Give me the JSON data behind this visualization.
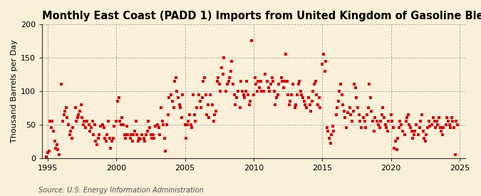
{
  "title": "Monthly East Coast (PADD 1) Imports from United Kingdom of Gasoline Blending Components",
  "ylabel": "Thousand Barrels per Day",
  "source_text": "Source: U.S. Energy Information Administration",
  "background_color": "#faefd8",
  "plot_bg_color": "#faefd8",
  "marker_color": "#cc0000",
  "marker": "s",
  "marker_size": 3.5,
  "xlim": [
    1994.6,
    2025.4
  ],
  "ylim": [
    0,
    200
  ],
  "yticks": [
    0,
    50,
    100,
    150,
    200
  ],
  "xticks": [
    1995,
    2000,
    2005,
    2010,
    2015,
    2020,
    2025
  ],
  "grid_color": "#aaaaaa",
  "grid_style": "--",
  "title_fontsize": 10.5,
  "label_fontsize": 8,
  "tick_fontsize": 8,
  "source_fontsize": 7,
  "data_x": [
    1994.917,
    1995.0,
    1995.083,
    1995.167,
    1995.25,
    1995.333,
    1995.417,
    1995.5,
    1995.583,
    1995.667,
    1995.75,
    1995.833,
    1996.0,
    1996.083,
    1996.167,
    1996.25,
    1996.333,
    1996.417,
    1996.5,
    1996.583,
    1996.667,
    1996.75,
    1996.833,
    1997.0,
    1997.083,
    1997.167,
    1997.25,
    1997.333,
    1997.417,
    1997.5,
    1997.583,
    1997.667,
    1997.75,
    1997.833,
    1998.0,
    1998.083,
    1998.167,
    1998.25,
    1998.333,
    1998.417,
    1998.5,
    1998.583,
    1998.667,
    1998.75,
    1998.833,
    1999.0,
    1999.083,
    1999.167,
    1999.25,
    1999.333,
    1999.417,
    1999.5,
    1999.583,
    1999.667,
    1999.75,
    1999.833,
    2000.0,
    2000.083,
    2000.167,
    2000.25,
    2000.333,
    2000.417,
    2000.5,
    2000.583,
    2000.667,
    2000.75,
    2000.833,
    2001.0,
    2001.083,
    2001.167,
    2001.25,
    2001.333,
    2001.417,
    2001.5,
    2001.583,
    2001.667,
    2001.75,
    2001.833,
    2002.0,
    2002.083,
    2002.167,
    2002.25,
    2002.333,
    2002.417,
    2002.5,
    2002.583,
    2002.667,
    2002.75,
    2002.833,
    2003.0,
    2003.083,
    2003.167,
    2003.25,
    2003.333,
    2003.417,
    2003.5,
    2003.583,
    2003.667,
    2003.75,
    2003.833,
    2004.0,
    2004.083,
    2004.167,
    2004.25,
    2004.333,
    2004.417,
    2004.5,
    2004.583,
    2004.667,
    2004.75,
    2004.833,
    2005.0,
    2005.083,
    2005.167,
    2005.25,
    2005.333,
    2005.417,
    2005.5,
    2005.583,
    2005.667,
    2005.75,
    2005.833,
    2006.0,
    2006.083,
    2006.167,
    2006.25,
    2006.333,
    2006.417,
    2006.5,
    2006.583,
    2006.667,
    2006.75,
    2006.833,
    2007.0,
    2007.083,
    2007.167,
    2007.25,
    2007.333,
    2007.417,
    2007.5,
    2007.583,
    2007.667,
    2007.75,
    2007.833,
    2008.0,
    2008.083,
    2008.167,
    2008.25,
    2008.333,
    2008.417,
    2008.5,
    2008.583,
    2008.667,
    2008.75,
    2008.833,
    2009.0,
    2009.083,
    2009.167,
    2009.25,
    2009.333,
    2009.417,
    2009.5,
    2009.583,
    2009.667,
    2009.75,
    2009.833,
    2010.0,
    2010.083,
    2010.167,
    2010.25,
    2010.333,
    2010.417,
    2010.5,
    2010.583,
    2010.667,
    2010.75,
    2010.833,
    2011.0,
    2011.083,
    2011.167,
    2011.25,
    2011.333,
    2011.417,
    2011.5,
    2011.583,
    2011.667,
    2011.75,
    2011.833,
    2012.0,
    2012.083,
    2012.167,
    2012.25,
    2012.333,
    2012.417,
    2012.5,
    2012.583,
    2012.667,
    2012.75,
    2012.833,
    2013.0,
    2013.083,
    2013.167,
    2013.25,
    2013.333,
    2013.417,
    2013.5,
    2013.583,
    2013.667,
    2013.75,
    2013.833,
    2014.0,
    2014.083,
    2014.167,
    2014.25,
    2014.333,
    2014.417,
    2014.5,
    2014.583,
    2014.667,
    2014.75,
    2014.833,
    2015.0,
    2015.083,
    2015.167,
    2015.25,
    2015.333,
    2015.417,
    2015.5,
    2015.583,
    2015.667,
    2015.75,
    2015.833,
    2016.0,
    2016.083,
    2016.167,
    2016.25,
    2016.333,
    2016.417,
    2016.5,
    2016.583,
    2016.667,
    2016.75,
    2016.833,
    2017.0,
    2017.083,
    2017.167,
    2017.25,
    2017.333,
    2017.417,
    2017.5,
    2017.583,
    2017.667,
    2017.75,
    2017.833,
    2018.0,
    2018.083,
    2018.167,
    2018.25,
    2018.333,
    2018.417,
    2018.5,
    2018.583,
    2018.667,
    2018.75,
    2018.833,
    2019.0,
    2019.083,
    2019.167,
    2019.25,
    2019.333,
    2019.417,
    2019.5,
    2019.583,
    2019.667,
    2019.75,
    2019.833,
    2020.0,
    2020.083,
    2020.167,
    2020.25,
    2020.333,
    2020.417,
    2020.5,
    2020.583,
    2020.667,
    2020.75,
    2020.833,
    2021.0,
    2021.083,
    2021.167,
    2021.25,
    2021.333,
    2021.417,
    2021.5,
    2021.583,
    2021.667,
    2021.75,
    2021.833,
    2022.0,
    2022.083,
    2022.167,
    2022.25,
    2022.333,
    2022.417,
    2022.5,
    2022.583,
    2022.667,
    2022.75,
    2022.833,
    2023.0,
    2023.083,
    2023.167,
    2023.25,
    2023.333,
    2023.417,
    2023.5,
    2023.583,
    2023.667,
    2023.75,
    2023.833,
    2024.0,
    2024.083,
    2024.167,
    2024.25,
    2024.333,
    2024.417,
    2024.5,
    2024.583,
    2024.667,
    2024.75,
    2024.833
  ],
  "data_y": [
    2,
    8,
    10,
    55,
    45,
    55,
    40,
    25,
    15,
    20,
    12,
    5,
    110,
    55,
    65,
    70,
    75,
    60,
    50,
    35,
    40,
    30,
    45,
    75,
    55,
    60,
    65,
    70,
    80,
    60,
    50,
    55,
    45,
    55,
    50,
    40,
    45,
    55,
    35,
    50,
    25,
    20,
    30,
    35,
    48,
    50,
    45,
    30,
    25,
    35,
    55,
    30,
    15,
    25,
    30,
    48,
    55,
    85,
    90,
    55,
    50,
    60,
    50,
    35,
    30,
    48,
    35,
    30,
    35,
    25,
    35,
    40,
    55,
    35,
    25,
    30,
    28,
    35,
    30,
    25,
    35,
    40,
    55,
    45,
    35,
    30,
    35,
    30,
    48,
    50,
    45,
    35,
    75,
    55,
    50,
    30,
    10,
    50,
    65,
    90,
    95,
    85,
    75,
    115,
    120,
    100,
    90,
    80,
    75,
    60,
    95,
    50,
    30,
    50,
    55,
    65,
    50,
    45,
    95,
    65,
    55,
    75,
    95,
    85,
    75,
    90,
    115,
    120,
    95,
    65,
    80,
    60,
    95,
    80,
    55,
    65,
    70,
    115,
    120,
    110,
    100,
    135,
    125,
    150,
    100,
    110,
    115,
    120,
    130,
    145,
    110,
    95,
    80,
    90,
    100,
    75,
    115,
    100,
    95,
    90,
    100,
    115,
    95,
    80,
    85,
    175,
    95,
    120,
    110,
    100,
    115,
    105,
    115,
    100,
    100,
    100,
    125,
    115,
    105,
    100,
    110,
    120,
    115,
    100,
    80,
    90,
    95,
    110,
    120,
    115,
    105,
    115,
    155,
    115,
    95,
    80,
    85,
    95,
    110,
    75,
    80,
    95,
    110,
    115,
    100,
    95,
    90,
    85,
    80,
    75,
    90,
    80,
    70,
    85,
    100,
    110,
    115,
    95,
    80,
    90,
    75,
    140,
    155,
    130,
    145,
    45,
    40,
    30,
    22,
    35,
    48,
    40,
    65,
    75,
    85,
    100,
    110,
    95,
    80,
    70,
    60,
    45,
    68,
    75,
    65,
    55,
    70,
    110,
    105,
    90,
    75,
    65,
    55,
    45,
    60,
    55,
    45,
    65,
    75,
    110,
    90,
    70,
    55,
    40,
    60,
    55,
    50,
    45,
    55,
    65,
    75,
    60,
    50,
    45,
    40,
    55,
    65,
    55,
    45,
    15,
    25,
    12,
    30,
    45,
    55,
    50,
    40,
    35,
    55,
    60,
    65,
    50,
    45,
    40,
    30,
    35,
    40,
    50,
    35,
    45,
    55,
    65,
    40,
    30,
    25,
    35,
    45,
    55,
    48,
    50,
    60,
    55,
    45,
    55,
    50,
    60,
    45,
    40,
    35,
    45,
    50,
    60,
    55,
    50,
    45,
    60,
    55,
    45,
    5,
    55,
    50
  ]
}
